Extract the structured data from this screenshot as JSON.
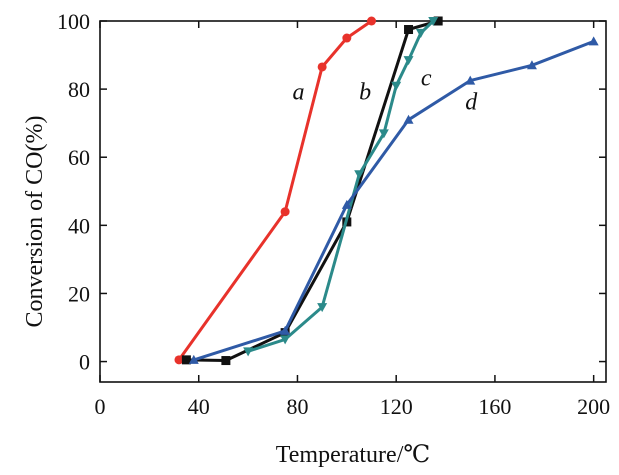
{
  "chart_data": {
    "type": "line",
    "title": "",
    "xlabel": "Temperature/℃",
    "ylabel": "Conversion of CO(%)",
    "xlim": [
      0,
      205
    ],
    "ylim": [
      -6,
      100
    ],
    "xticks": [
      0,
      40,
      80,
      120,
      160,
      200
    ],
    "yticks": [
      0,
      20,
      40,
      60,
      80,
      100
    ],
    "grid": false,
    "series": [
      {
        "name": "a",
        "color": "#e8322b",
        "marker": "circle",
        "x": [
          32,
          75,
          90,
          100,
          110
        ],
        "y": [
          0.5,
          44,
          86.5,
          95,
          100
        ],
        "label_at": [
          78,
          77
        ]
      },
      {
        "name": "b",
        "color": "#111111",
        "marker": "square",
        "x": [
          35,
          51,
          75,
          100,
          125,
          137
        ],
        "y": [
          0.5,
          0.3,
          8.5,
          41,
          97.5,
          100
        ],
        "label_at": [
          105,
          77
        ]
      },
      {
        "name": "c",
        "color": "#2b8a8a",
        "marker": "triangle-down",
        "x": [
          60,
          75,
          90,
          105,
          115,
          120,
          125,
          130,
          135
        ],
        "y": [
          3,
          6.5,
          16,
          55,
          67,
          81,
          88.5,
          96.5,
          100
        ],
        "label_at": [
          130,
          81
        ]
      },
      {
        "name": "d",
        "color": "#2f5aa6",
        "marker": "triangle-up",
        "x": [
          38,
          75,
          100,
          125,
          150,
          175,
          200
        ],
        "y": [
          0.5,
          9,
          46,
          71,
          82.5,
          87,
          94
        ],
        "label_at": [
          148,
          74
        ]
      }
    ]
  }
}
